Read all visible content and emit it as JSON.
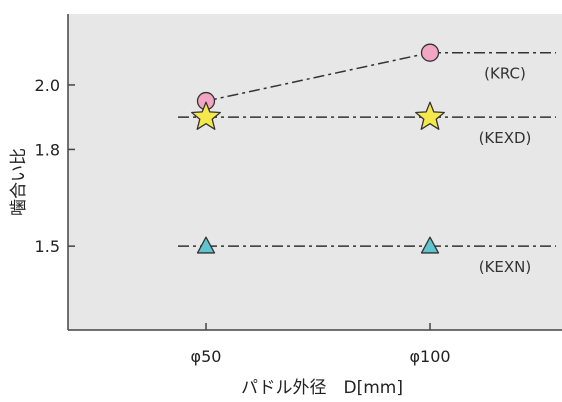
{
  "chart_data": {
    "type": "line",
    "title": "",
    "xlabel": "パドル外径　D[mm]",
    "ylabel": "噛合い比",
    "categories": [
      "φ50",
      "φ100"
    ],
    "yticks": [
      1.5,
      1.8,
      2.0
    ],
    "ytick_labels": [
      "1.5",
      "1.8",
      "2.0"
    ],
    "ylim": [
      1.24,
      2.22
    ],
    "grid": false,
    "background": "#e7e7e7",
    "series": [
      {
        "name": "(KRC)",
        "values": [
          1.95,
          2.1
        ],
        "marker": "circle",
        "color": "#f2a6c2",
        "line_style": "dash-dot",
        "extends_right": true,
        "extends_left": false
      },
      {
        "name": "(KEXD)",
        "values": [
          1.9,
          1.9
        ],
        "marker": "star",
        "color": "#f5e84a",
        "line_style": "dash-dot",
        "extends_right": true,
        "extends_left": true
      },
      {
        "name": "(KEXN)",
        "values": [
          1.5,
          1.5
        ],
        "marker": "triangle",
        "color": "#5fc4cf",
        "line_style": "dash-dot",
        "extends_right": true,
        "extends_left": true
      }
    ]
  }
}
